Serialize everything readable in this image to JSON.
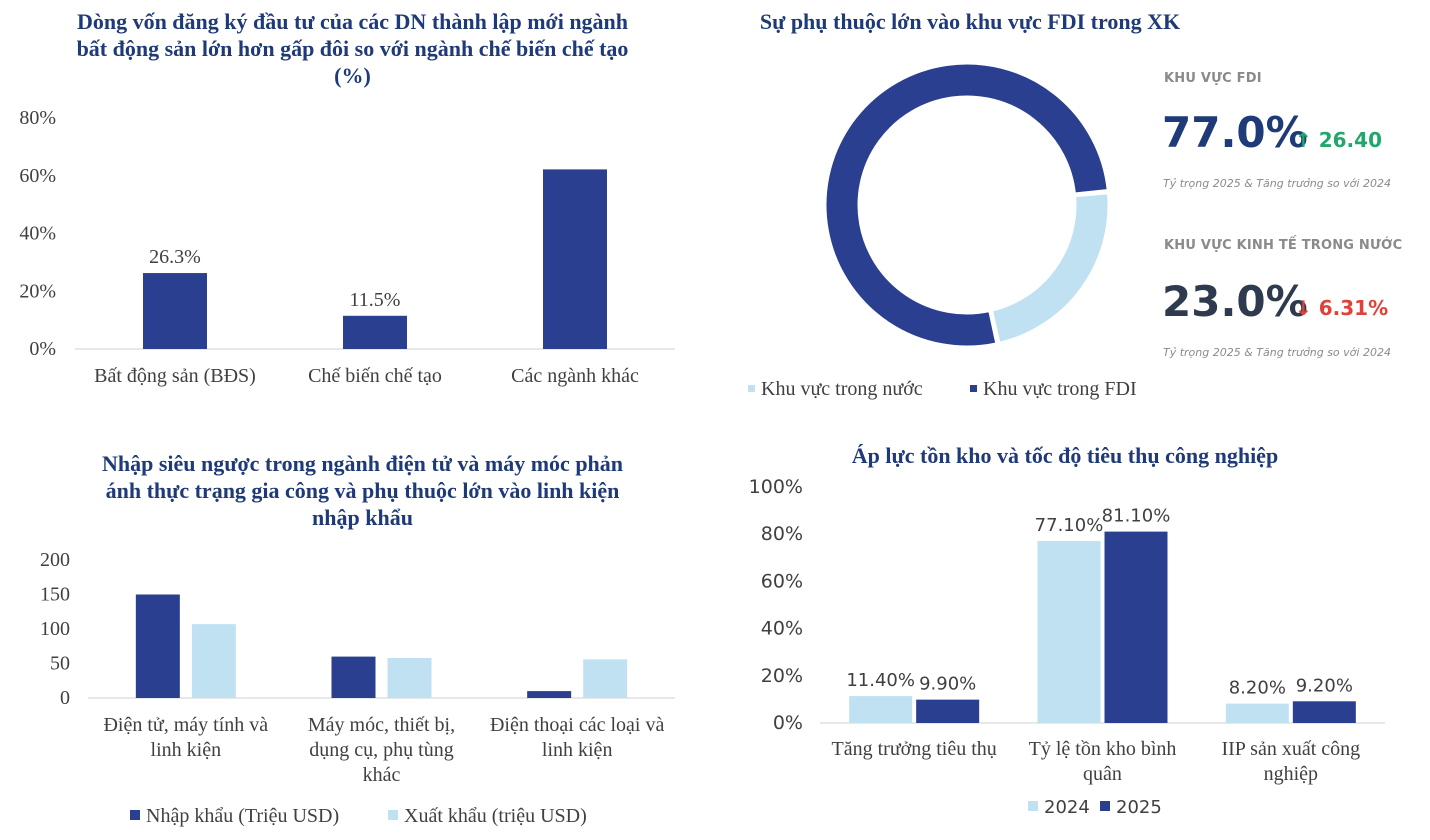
{
  "colors": {
    "dark": "#2a3f8f",
    "light": "#bfe1f2",
    "up": "#21a66b",
    "down": "#e0413a",
    "navy": "#1f3a78",
    "axis": "#d0d0d0",
    "text": "#404040"
  },
  "chart_data": [
    {
      "type": "bar",
      "title": "Dòng vốn đăng ký đầu tư của các DN thành lập mới ngành bất động sản lớn hơn gấp đôi so với ngành chế biến chế tạo (%)",
      "categories": [
        "Bất động sản (BĐS)",
        "Chế biến chế tạo",
        "Các ngành khác"
      ],
      "series": [
        {
          "values": [
            26.3,
            11.5,
            62.2
          ]
        }
      ],
      "data_labels": [
        "26.3%",
        "11.5%",
        ""
      ],
      "yticks": [
        "0%",
        "20%",
        "40%",
        "60%",
        "80%"
      ],
      "ylim": [
        0,
        80
      ]
    },
    {
      "type": "pie",
      "title": "Sự phụ thuộc lớn vào khu vực FDI trong XK",
      "slices": [
        {
          "name": "Khu vực trong nước",
          "value": 23.0
        },
        {
          "name": "Khu vực trong FDI",
          "value": 77.0
        }
      ],
      "kpis": [
        {
          "heading": "KHU VỰC FDI",
          "value": "77.0%",
          "change": "↑ 26.40",
          "direction": "up",
          "note": "Tỷ trọng 2025 & Tăng trưởng so với 2024"
        },
        {
          "heading": "KHU VỰC KINH TẾ TRONG NƯỚC",
          "value": "23.0%",
          "change": "↓ 6.31%",
          "direction": "down",
          "note": "Tỷ trọng 2025 & Tăng trưởng so với 2024"
        }
      ]
    },
    {
      "type": "bar",
      "title": "Nhập siêu ngược trong ngành điện tử và máy móc phản ánh thực trạng gia công và phụ thuộc lớn vào linh kiện nhập khẩu",
      "categories": [
        [
          "Điện tử, máy tính và",
          "linh kiện"
        ],
        [
          "Máy móc, thiết bị,",
          "dụng cụ, phụ tùng",
          "khác"
        ],
        [
          "Điện thoại các loại và",
          "linh kiện"
        ]
      ],
      "series": [
        {
          "name": "Nhập khẩu (Triệu USD)",
          "values": [
            150,
            60,
            10
          ]
        },
        {
          "name": "Xuất khẩu (triệu USD)",
          "values": [
            107,
            58,
            56
          ]
        }
      ],
      "yticks": [
        "0",
        "50",
        "100",
        "150",
        "200"
      ],
      "ylim": [
        0,
        200
      ]
    },
    {
      "type": "bar",
      "title": "Áp lực tồn kho và tốc độ tiêu thụ công nghiệp",
      "categories": [
        [
          "Tăng trưởng tiêu thụ"
        ],
        [
          "Tỷ lệ tồn kho bình",
          "quân"
        ],
        [
          "IIP sản xuất công",
          "nghiệp"
        ]
      ],
      "series": [
        {
          "name": "2024",
          "values": [
            11.4,
            77.1,
            8.2
          ],
          "labels": [
            "11.40%",
            "77.10%",
            "8.20%"
          ]
        },
        {
          "name": "2025",
          "values": [
            9.9,
            81.1,
            9.2
          ],
          "labels": [
            "9.90%",
            "81.10%",
            "9.20%"
          ]
        }
      ],
      "yticks": [
        "0%",
        "20%",
        "40%",
        "60%",
        "80%",
        "100%"
      ],
      "ylim": [
        0,
        100
      ]
    }
  ]
}
